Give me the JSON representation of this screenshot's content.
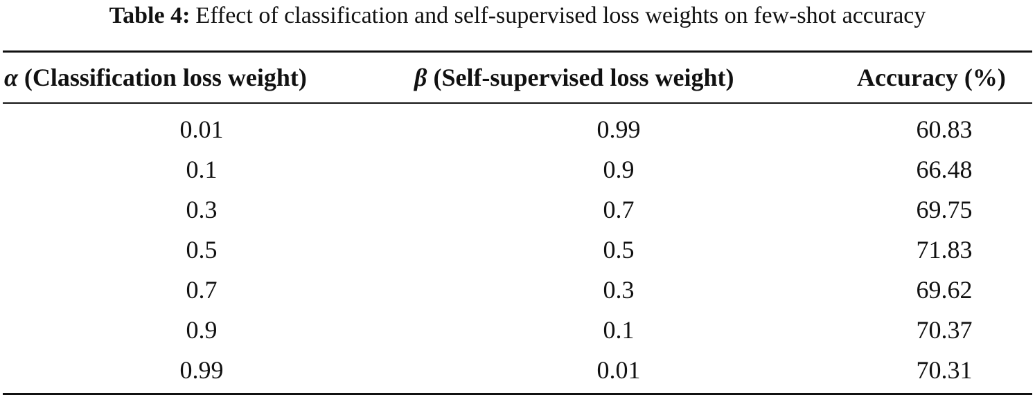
{
  "caption": {
    "label": "Table 4:",
    "text": "Effect of classification and self-supervised loss weights on few-shot accuracy"
  },
  "table": {
    "headers": {
      "alpha_symbol": "α",
      "alpha_text": " (Classification loss weight)",
      "beta_symbol": "β",
      "beta_text": " (Self-supervised loss weight)",
      "accuracy": "Accuracy (%)"
    },
    "rows": [
      {
        "alpha": "0.01",
        "beta": "0.99",
        "accuracy": "60.83"
      },
      {
        "alpha": "0.1",
        "beta": "0.9",
        "accuracy": "66.48"
      },
      {
        "alpha": "0.3",
        "beta": "0.7",
        "accuracy": "69.75"
      },
      {
        "alpha": "0.5",
        "beta": "0.5",
        "accuracy": "71.83"
      },
      {
        "alpha": "0.7",
        "beta": "0.3",
        "accuracy": "69.62"
      },
      {
        "alpha": "0.9",
        "beta": "0.1",
        "accuracy": "70.37"
      },
      {
        "alpha": "0.99",
        "beta": "0.01",
        "accuracy": "70.31"
      }
    ]
  }
}
